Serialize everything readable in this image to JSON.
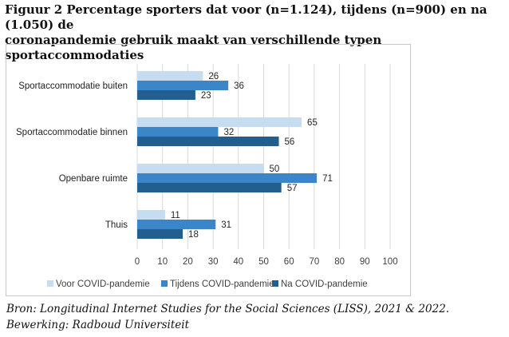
{
  "header": {
    "title_line1": "Figuur 2 Percentage sporters dat voor (n=1.124), tijdens (n=900) en na (1.050) de",
    "title_line2": "coronapandemie gebruik maakt van verschillende typen sportaccommodaties"
  },
  "footer": {
    "source_line1": "Bron: Longitudinal Internet Studies for the Social Sciences (LISS), 2021 & 2022.",
    "source_line2": "Bewerking: Radboud Universiteit"
  },
  "chart_data": {
    "type": "bar",
    "orientation": "horizontal",
    "title": "Figuur 2 Percentage sporters dat voor (n=1.124), tijdens (n=900) en na (1.050) de coronapandemie gebruik maakt van verschillende typen sportaccommodaties",
    "categories": [
      "Sportaccommodatie buiten",
      "Sportaccommodatie binnen",
      "Openbare ruimte",
      "Thuis"
    ],
    "series": [
      {
        "name": "Voor COVID-pandemie",
        "color": "#c6dcf0",
        "values": [
          26,
          65,
          50,
          11
        ]
      },
      {
        "name": "Tijdens COVID-pandemie",
        "color": "#3a86c8",
        "values": [
          36,
          32,
          71,
          31
        ]
      },
      {
        "name": "Na COVID-pandemie",
        "color": "#235f8e",
        "values": [
          23,
          56,
          57,
          18
        ]
      }
    ],
    "xlim": [
      0,
      100
    ],
    "xticks": [
      0,
      10,
      20,
      30,
      40,
      50,
      60,
      70,
      80,
      90,
      100
    ],
    "xlabel": "",
    "ylabel": "",
    "grid": "vertical",
    "legend": "bottom"
  }
}
